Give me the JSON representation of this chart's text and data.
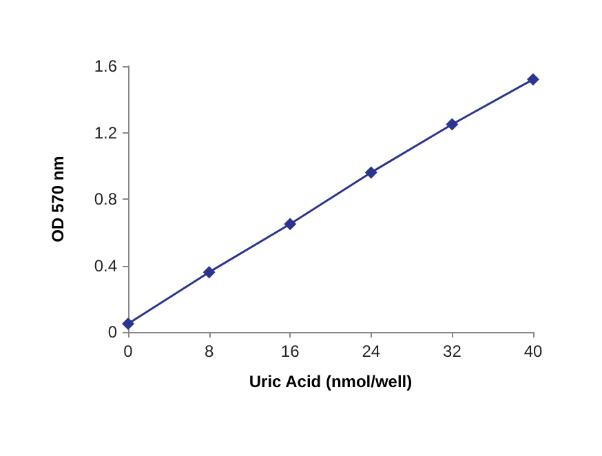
{
  "chart_data": {
    "type": "line",
    "xlabel": "Uric Acid (nmol/well)",
    "ylabel": "OD 570 nm",
    "x": [
      0,
      8,
      16,
      24,
      32,
      40
    ],
    "series": [
      {
        "color": "#2b3590",
        "values": [
          0.05,
          0.36,
          0.65,
          0.96,
          1.25,
          1.52
        ]
      }
    ],
    "xlim": [
      0,
      40
    ],
    "xticks": [
      0,
      8,
      16,
      24,
      32,
      40
    ],
    "ylim": [
      0,
      1.6
    ],
    "yticks": [
      0,
      0.4,
      0.8,
      1.2,
      1.6
    ],
    "grid": false,
    "marker": "diamond",
    "line_style": "solid"
  }
}
